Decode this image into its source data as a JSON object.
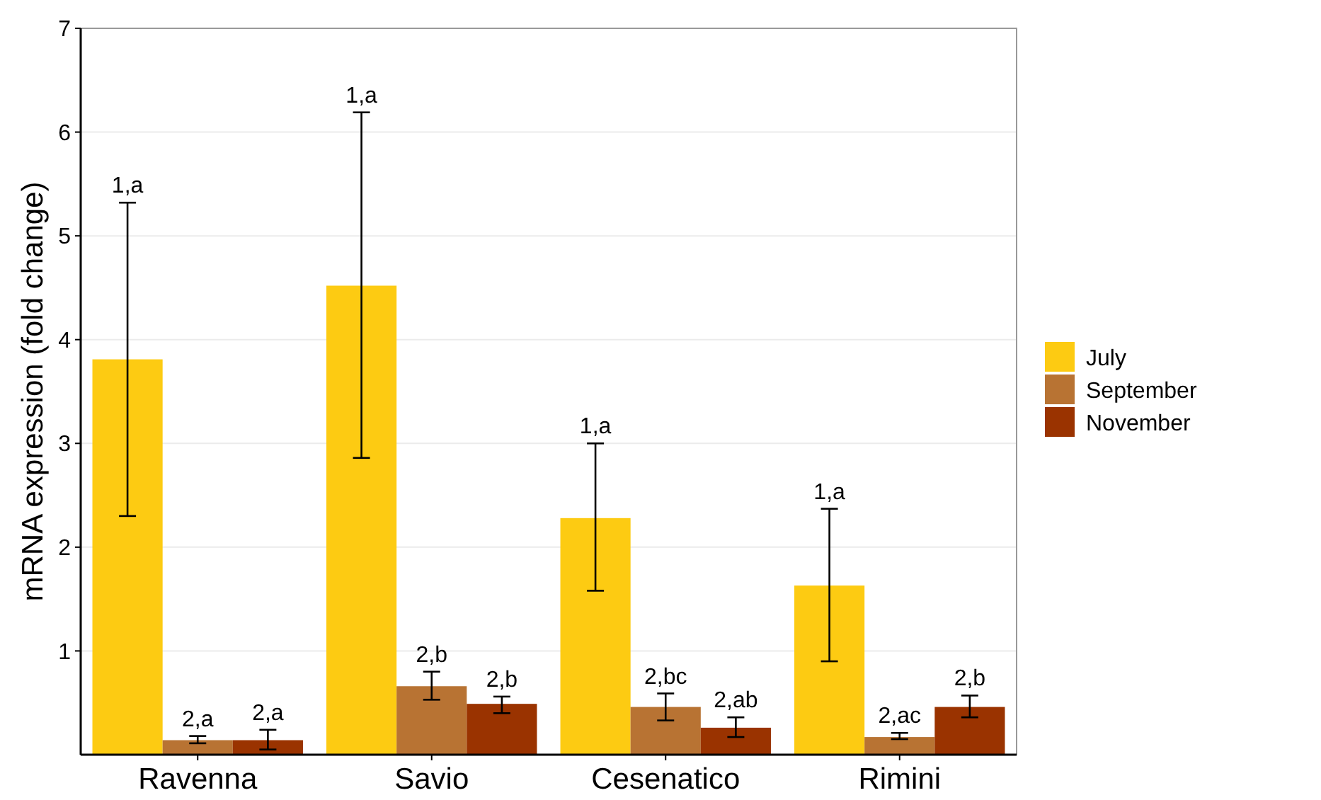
{
  "chart_data": {
    "type": "bar",
    "ylabel": "mRNA expression (fold change)",
    "categories": [
      "Ravenna",
      "Savio",
      "Cesenatico",
      "Rimini"
    ],
    "series": [
      {
        "name": "July",
        "color": "#fdcb12",
        "values": [
          3.81,
          4.52,
          2.28,
          1.63
        ],
        "errors": [
          [
            2.3,
            5.32
          ],
          [
            2.86,
            6.19
          ],
          [
            1.58,
            3.0
          ],
          [
            0.9,
            2.37
          ]
        ]
      },
      {
        "name": "September",
        "color": "#b87333",
        "values": [
          0.14,
          0.66,
          0.46,
          0.17
        ],
        "errors": [
          [
            0.11,
            0.18
          ],
          [
            0.53,
            0.8
          ],
          [
            0.33,
            0.59
          ],
          [
            0.15,
            0.21
          ]
        ]
      },
      {
        "name": "November",
        "color": "#9a3300",
        "values": [
          0.14,
          0.49,
          0.26,
          0.46
        ],
        "errors": [
          [
            0.05,
            0.24
          ],
          [
            0.4,
            0.56
          ],
          [
            0.17,
            0.36
          ],
          [
            0.36,
            0.57
          ]
        ]
      }
    ],
    "ylim": [
      0,
      7
    ],
    "yticks": [
      1,
      2,
      3,
      4,
      5,
      6,
      7
    ],
    "grid": "y",
    "legend": "right",
    "annotations": [
      "1,a",
      "2,a",
      "2,a",
      "1,a",
      "2,b",
      "2,b",
      "1,a",
      "2,bc",
      "2,ab",
      "1,a",
      "2,ac",
      "2,b"
    ]
  }
}
